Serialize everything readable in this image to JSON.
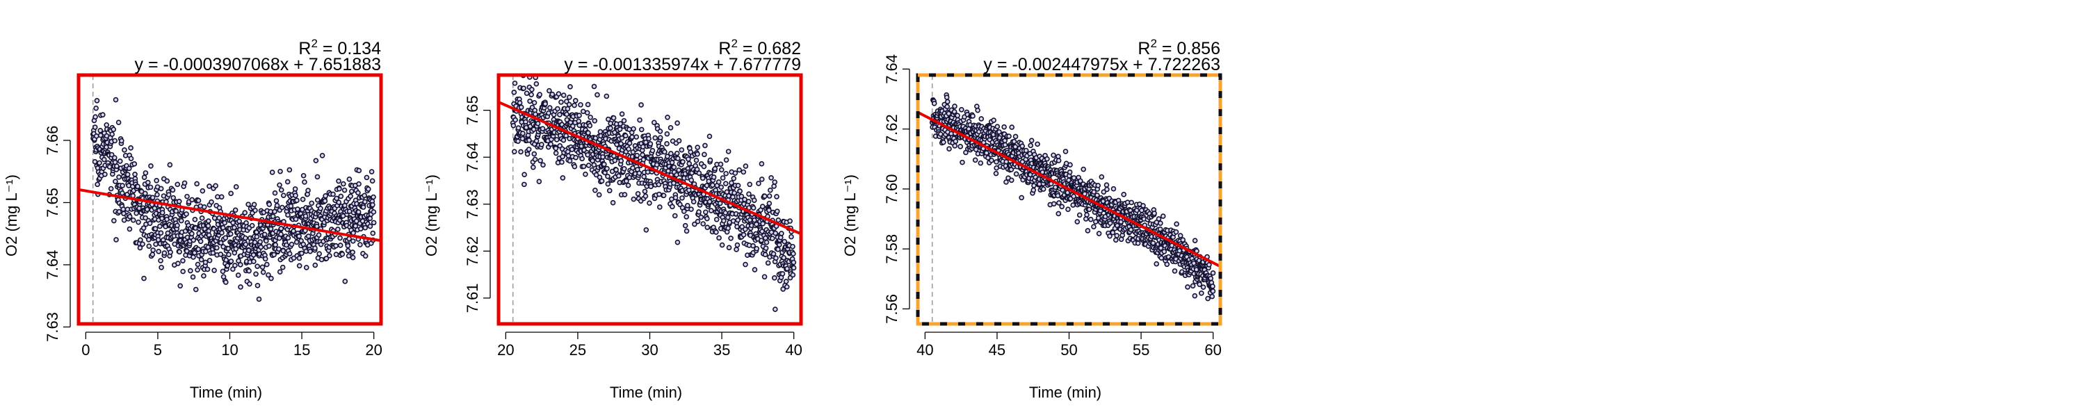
{
  "colors": {
    "point_fill": "#d7d5ef",
    "point_stroke": "#121230",
    "fit_line": "#e60000",
    "frame_solid": "#e60000",
    "frame_dashed": "#f7a531",
    "start_marker": "#9a9a9a"
  },
  "chart_data": [
    {
      "type": "scatter",
      "title": "",
      "xlabel": "Time (min)",
      "ylabel": "O2 (mg L⁻¹)",
      "xlim": [
        -0.5,
        20.5
      ],
      "ylim": [
        7.6305,
        7.6705
      ],
      "xticks": [
        0,
        5,
        10,
        15,
        20
      ],
      "yticks": [
        7.63,
        7.64,
        7.65,
        7.66
      ],
      "xtick_labels": [
        "0",
        "5",
        "10",
        "15",
        "20"
      ],
      "ytick_labels": [
        "7.63",
        "7.64",
        "7.65",
        "7.66"
      ],
      "r2_label": "R",
      "r2_sup": "2",
      "r2_value": " = 0.134",
      "equation": "y = -0.0003907068x + 7.651883",
      "fit": {
        "slope": -0.0003907068,
        "intercept": 7.651883,
        "x_range": [
          -0.5,
          20.5
        ]
      },
      "start_x": 0.5,
      "frame_style": "solid",
      "series": [
        {
          "x_range": [
            0.5,
            20
          ],
          "n": 1180,
          "trend_points": [
            [
              0.5,
              7.661
            ],
            [
              1,
              7.659
            ],
            [
              2,
              7.656
            ],
            [
              3,
              7.652
            ],
            [
              4,
              7.649
            ],
            [
              5,
              7.6475
            ],
            [
              6,
              7.646
            ],
            [
              8,
              7.645
            ],
            [
              10,
              7.6435
            ],
            [
              12,
              7.644
            ],
            [
              14,
              7.6465
            ],
            [
              16,
              7.647
            ],
            [
              18,
              7.6475
            ],
            [
              20,
              7.648
            ]
          ],
          "noise_sd": 0.0033
        }
      ]
    },
    {
      "type": "scatter",
      "title": "",
      "xlabel": "Time (min)",
      "ylabel": "O2 (mg L⁻¹)",
      "xlim": [
        19.5,
        40.5
      ],
      "ylim": [
        7.6045,
        7.6575
      ],
      "xticks": [
        20,
        25,
        30,
        35,
        40
      ],
      "yticks": [
        7.61,
        7.62,
        7.63,
        7.64,
        7.65
      ],
      "xtick_labels": [
        "20",
        "25",
        "30",
        "35",
        "40"
      ],
      "ytick_labels": [
        "7.61",
        "7.62",
        "7.63",
        "7.64",
        "7.65"
      ],
      "r2_label": "R",
      "r2_sup": "2",
      "r2_value": " = 0.682",
      "equation": "y = -0.001335974x + 7.677779",
      "fit": {
        "slope": -0.001335974,
        "intercept": 7.677779,
        "x_range": [
          19.5,
          40.5
        ]
      },
      "start_x": 20.5,
      "frame_style": "solid",
      "series": [
        {
          "x_range": [
            20.5,
            40
          ],
          "n": 1180,
          "trend_points": [
            [
              20.5,
              7.648
            ],
            [
              22,
              7.6475
            ],
            [
              25,
              7.6445
            ],
            [
              28,
              7.6405
            ],
            [
              30,
              7.6385
            ],
            [
              32,
              7.636
            ],
            [
              34,
              7.6325
            ],
            [
              36,
              7.629
            ],
            [
              38,
              7.625
            ],
            [
              40,
              7.6175
            ]
          ],
          "noise_sd": 0.0045
        }
      ]
    },
    {
      "type": "scatter",
      "title": "",
      "xlabel": "Time (min)",
      "ylabel": "O2 (mg L⁻¹)",
      "xlim": [
        39.5,
        60.5
      ],
      "ylim": [
        7.555,
        7.638
      ],
      "xticks": [
        40,
        45,
        50,
        55,
        60
      ],
      "yticks": [
        7.56,
        7.58,
        7.6,
        7.62,
        7.64
      ],
      "xtick_labels": [
        "40",
        "45",
        "50",
        "55",
        "60"
      ],
      "ytick_labels": [
        "7.56",
        "7.58",
        "7.60",
        "7.62",
        "7.64"
      ],
      "r2_label": "R",
      "r2_sup": "2",
      "r2_value": " = 0.856",
      "equation": "y = -0.002447975x + 7.722263",
      "fit": {
        "slope": -0.002447975,
        "intercept": 7.722263,
        "x_range": [
          39.5,
          60.5
        ]
      },
      "start_x": 40.5,
      "frame_style": "dashed",
      "series": [
        {
          "x_range": [
            40.5,
            60
          ],
          "n": 1180,
          "trend_points": [
            [
              40.5,
              7.6245
            ],
            [
              42,
              7.621
            ],
            [
              45,
              7.6145
            ],
            [
              48,
              7.606
            ],
            [
              50,
              7.6005
            ],
            [
              52,
              7.595
            ],
            [
              55,
              7.587
            ],
            [
              58,
              7.578
            ],
            [
              60,
              7.57
            ]
          ],
          "noise_sd": 0.0038
        }
      ]
    }
  ]
}
